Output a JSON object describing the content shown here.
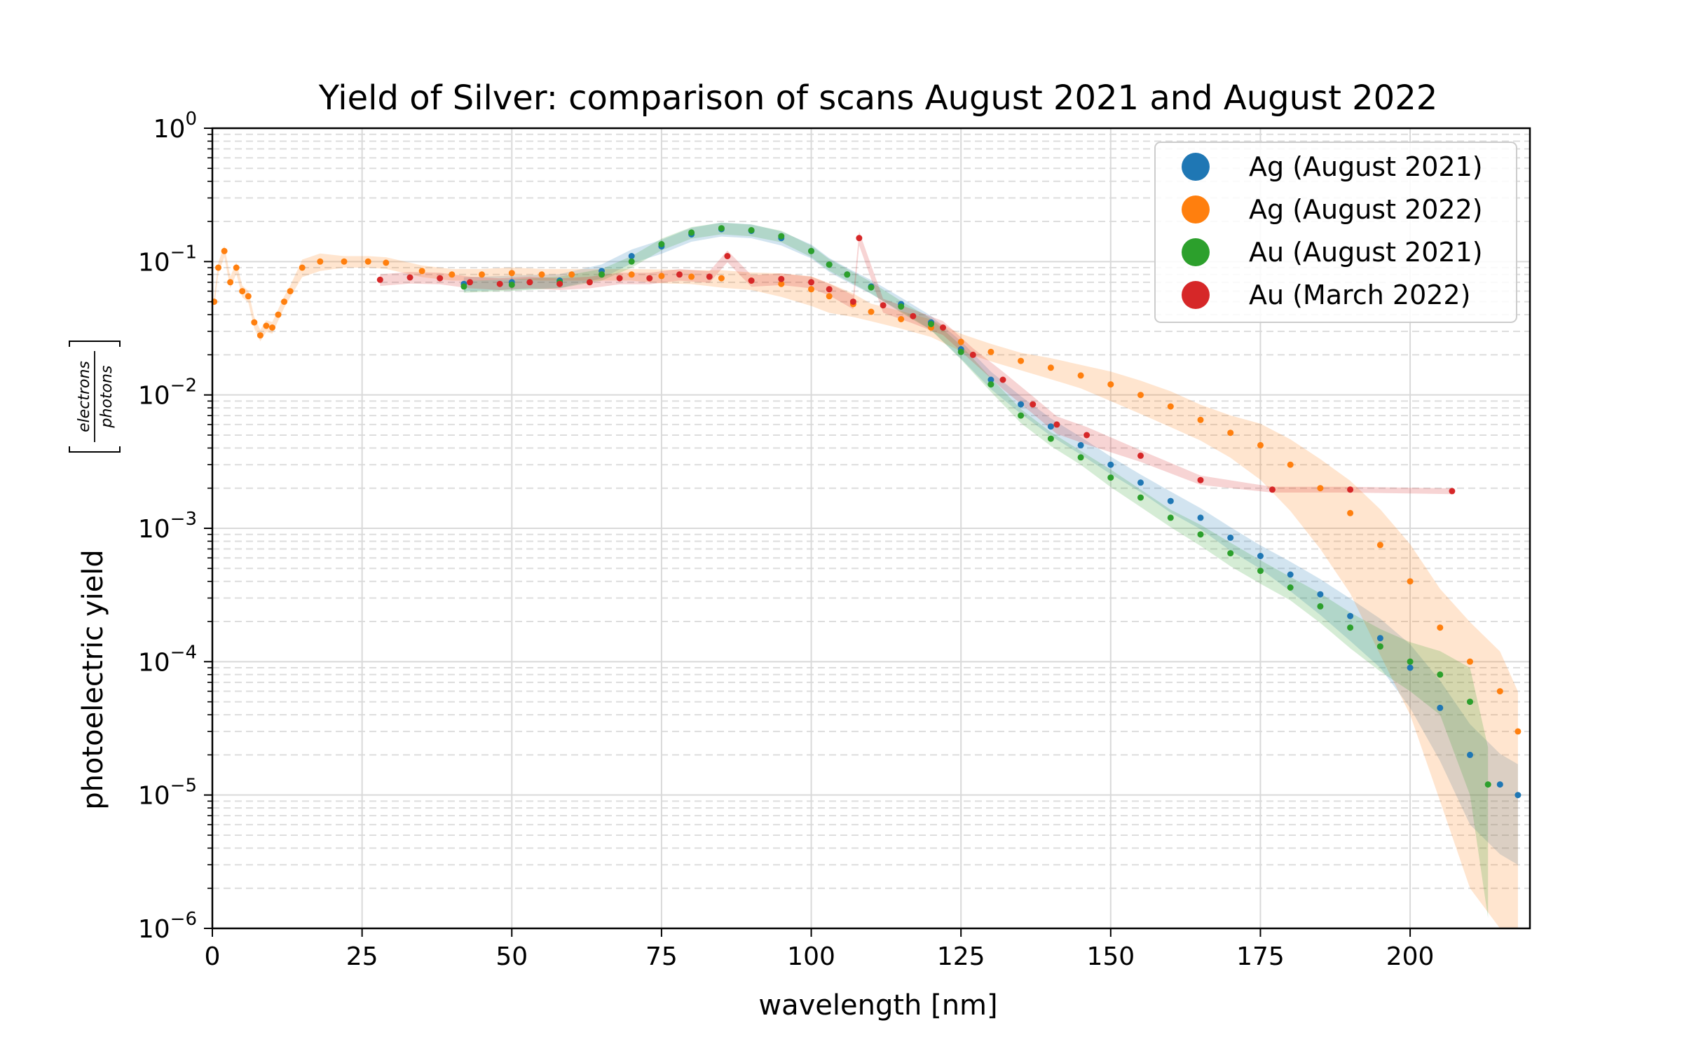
{
  "chart_data": {
    "type": "scatter",
    "title": "Yield of Silver: comparison of scans August 2021 and August 2022",
    "xlabel": "wavelength [nm]",
    "ylabel": "photoelectric yield",
    "ylabel_unit_numerator": "electrons",
    "ylabel_unit_denominator": "photons",
    "xlim": [
      0,
      220
    ],
    "ylim": [
      1e-06,
      1
    ],
    "yscale": "log",
    "grid": true,
    "legend_position": "top-right",
    "x_ticks": [
      {
        "value": 0,
        "label": "0"
      },
      {
        "value": 25,
        "label": "25"
      },
      {
        "value": 50,
        "label": "50"
      },
      {
        "value": 75,
        "label": "75"
      },
      {
        "value": 100,
        "label": "100"
      },
      {
        "value": 125,
        "label": "125"
      },
      {
        "value": 150,
        "label": "150"
      },
      {
        "value": 175,
        "label": "175"
      },
      {
        "value": 200,
        "label": "200"
      }
    ],
    "y_ticks": [
      {
        "value": 1e-06,
        "base": "10",
        "exp": "−6"
      },
      {
        "value": 1e-05,
        "base": "10",
        "exp": "−5"
      },
      {
        "value": 0.0001,
        "base": "10",
        "exp": "−4"
      },
      {
        "value": 0.001,
        "base": "10",
        "exp": "−3"
      },
      {
        "value": 0.01,
        "base": "10",
        "exp": "−2"
      },
      {
        "value": 0.1,
        "base": "10",
        "exp": "−1"
      },
      {
        "value": 1,
        "base": "10",
        "exp": "0"
      }
    ],
    "series": [
      {
        "name": "Ag (August 2021)",
        "color": "#1f77b4",
        "x": [
          42,
          50,
          58,
          65,
          70,
          75,
          80,
          85,
          90,
          95,
          100,
          103,
          106,
          110,
          115,
          120,
          125,
          130,
          135,
          140,
          145,
          150,
          155,
          160,
          165,
          170,
          175,
          180,
          185,
          190,
          195,
          200,
          205,
          210,
          215,
          218
        ],
        "y": [
          0.068,
          0.07,
          0.072,
          0.085,
          0.11,
          0.13,
          0.16,
          0.175,
          0.17,
          0.15,
          0.12,
          0.095,
          0.08,
          0.065,
          0.048,
          0.035,
          0.022,
          0.013,
          0.0085,
          0.0058,
          0.0042,
          0.003,
          0.0022,
          0.0016,
          0.0012,
          0.00085,
          0.00062,
          0.00045,
          0.00032,
          0.00022,
          0.00015,
          9e-05,
          4.5e-05,
          2e-05,
          1.2e-05,
          1e-05
        ],
        "band": [
          0.12,
          0.12,
          0.12,
          0.12,
          0.12,
          0.12,
          0.12,
          0.12,
          0.12,
          0.12,
          0.12,
          0.12,
          0.12,
          0.12,
          0.12,
          0.12,
          0.15,
          0.15,
          0.15,
          0.15,
          0.15,
          0.15,
          0.15,
          0.18,
          0.18,
          0.2,
          0.2,
          0.25,
          0.3,
          0.35,
          0.4,
          0.5,
          0.6,
          0.7,
          0.7,
          0.7
        ]
      },
      {
        "name": "Ag (August 2022)",
        "color": "#ff7f0e",
        "x": [
          0.3,
          1,
          2,
          3,
          4,
          5,
          6,
          7,
          8,
          9,
          10,
          11,
          12,
          13,
          15,
          18,
          22,
          26,
          29,
          35,
          40,
          45,
          50,
          55,
          60,
          65,
          70,
          75,
          80,
          85,
          90,
          95,
          100,
          103,
          107,
          110,
          115,
          120,
          125,
          130,
          135,
          140,
          145,
          150,
          155,
          160,
          165,
          170,
          175,
          180,
          185,
          190,
          195,
          200,
          205,
          210,
          215,
          218
        ],
        "y": [
          0.05,
          0.09,
          0.12,
          0.07,
          0.09,
          0.06,
          0.055,
          0.035,
          0.028,
          0.033,
          0.032,
          0.04,
          0.05,
          0.06,
          0.09,
          0.1,
          0.1,
          0.1,
          0.098,
          0.085,
          0.08,
          0.08,
          0.082,
          0.08,
          0.08,
          0.08,
          0.08,
          0.078,
          0.077,
          0.075,
          0.072,
          0.068,
          0.062,
          0.055,
          0.048,
          0.042,
          0.037,
          0.032,
          0.025,
          0.021,
          0.018,
          0.016,
          0.014,
          0.012,
          0.01,
          0.0082,
          0.0065,
          0.0052,
          0.0042,
          0.003,
          0.002,
          0.0013,
          0.00075,
          0.0004,
          0.00018,
          0.0001,
          6e-05,
          3e-05
        ],
        "band": [
          0.1,
          0.1,
          0.1,
          0.1,
          0.1,
          0.1,
          0.1,
          0.1,
          0.1,
          0.1,
          0.1,
          0.1,
          0.1,
          0.1,
          0.15,
          0.15,
          0.1,
          0.1,
          0.1,
          0.1,
          0.1,
          0.1,
          0.1,
          0.1,
          0.1,
          0.1,
          0.1,
          0.12,
          0.12,
          0.15,
          0.15,
          0.2,
          0.25,
          0.25,
          0.2,
          0.15,
          0.15,
          0.15,
          0.15,
          0.15,
          0.15,
          0.18,
          0.2,
          0.25,
          0.28,
          0.3,
          0.3,
          0.35,
          0.45,
          0.55,
          0.65,
          0.75,
          0.85,
          0.9,
          0.95,
          0.98,
          0.99,
          0.99
        ]
      },
      {
        "name": "Au (August 2021)",
        "color": "#2ca02c",
        "x": [
          42,
          50,
          58,
          65,
          70,
          75,
          80,
          85,
          90,
          95,
          100,
          103,
          106,
          110,
          115,
          120,
          125,
          130,
          135,
          140,
          145,
          150,
          155,
          160,
          165,
          170,
          175,
          180,
          185,
          190,
          195,
          200,
          205,
          210,
          213
        ],
        "y": [
          0.065,
          0.067,
          0.07,
          0.08,
          0.1,
          0.135,
          0.165,
          0.178,
          0.172,
          0.155,
          0.12,
          0.095,
          0.08,
          0.064,
          0.046,
          0.034,
          0.021,
          0.012,
          0.007,
          0.0047,
          0.0034,
          0.0024,
          0.0017,
          0.0012,
          0.0009,
          0.00065,
          0.00048,
          0.00036,
          0.00026,
          0.00018,
          0.00013,
          0.0001,
          8e-05,
          5e-05,
          1.2e-05
        ],
        "band": [
          0.1,
          0.1,
          0.1,
          0.1,
          0.1,
          0.1,
          0.1,
          0.1,
          0.1,
          0.1,
          0.1,
          0.1,
          0.1,
          0.1,
          0.1,
          0.1,
          0.12,
          0.12,
          0.12,
          0.12,
          0.12,
          0.15,
          0.15,
          0.15,
          0.18,
          0.2,
          0.2,
          0.2,
          0.25,
          0.3,
          0.35,
          0.4,
          0.5,
          0.8,
          0.9
        ]
      },
      {
        "name": "Au (March 2022)",
        "color": "#d62728",
        "x": [
          28,
          33,
          38,
          43,
          48,
          53,
          58,
          63,
          68,
          73,
          78,
          83,
          86,
          90,
          95,
          100,
          103,
          107,
          108,
          112,
          117,
          122,
          127,
          132,
          137,
          141,
          146,
          155,
          165,
          177,
          190,
          207
        ],
        "y": [
          0.073,
          0.076,
          0.075,
          0.07,
          0.068,
          0.07,
          0.068,
          0.07,
          0.075,
          0.075,
          0.08,
          0.077,
          0.11,
          0.072,
          0.074,
          0.07,
          0.062,
          0.05,
          0.15,
          0.047,
          0.039,
          0.032,
          0.02,
          0.013,
          0.0085,
          0.006,
          0.005,
          0.0035,
          0.0023,
          0.00195,
          0.00195,
          0.0019
        ],
        "band": [
          0.1,
          0.1,
          0.1,
          0.1,
          0.1,
          0.1,
          0.1,
          0.1,
          0.1,
          0.1,
          0.1,
          0.1,
          0.1,
          0.1,
          0.1,
          0.1,
          0.1,
          0.12,
          0.12,
          0.12,
          0.12,
          0.12,
          0.12,
          0.15,
          0.15,
          0.15,
          0.15,
          0.1,
          0.08,
          0.05,
          0.05,
          0.05
        ]
      }
    ]
  }
}
